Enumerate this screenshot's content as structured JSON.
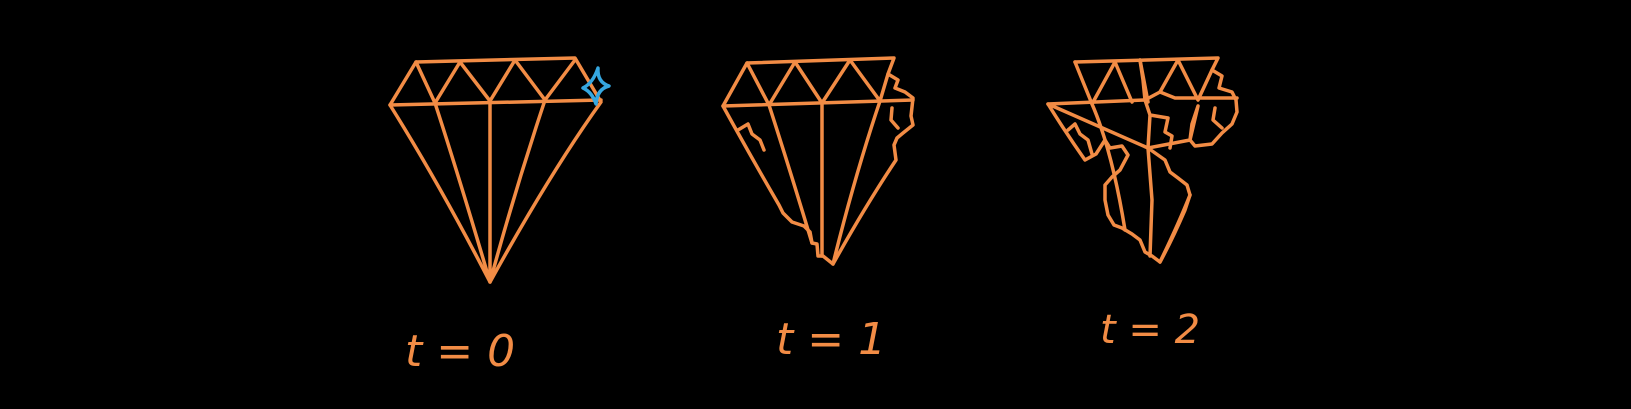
{
  "colors": {
    "background": "#000000",
    "diamond_stroke": "#F28C45",
    "sparkle_stroke": "#35A7E0",
    "label_color": "#F28C45"
  },
  "frames": [
    {
      "label": "t = 0",
      "state": "intact",
      "has_sparkle": true
    },
    {
      "label": "t = 1",
      "state": "chipped",
      "has_sparkle": false
    },
    {
      "label": "t = 2",
      "state": "broken",
      "has_sparkle": false
    }
  ]
}
